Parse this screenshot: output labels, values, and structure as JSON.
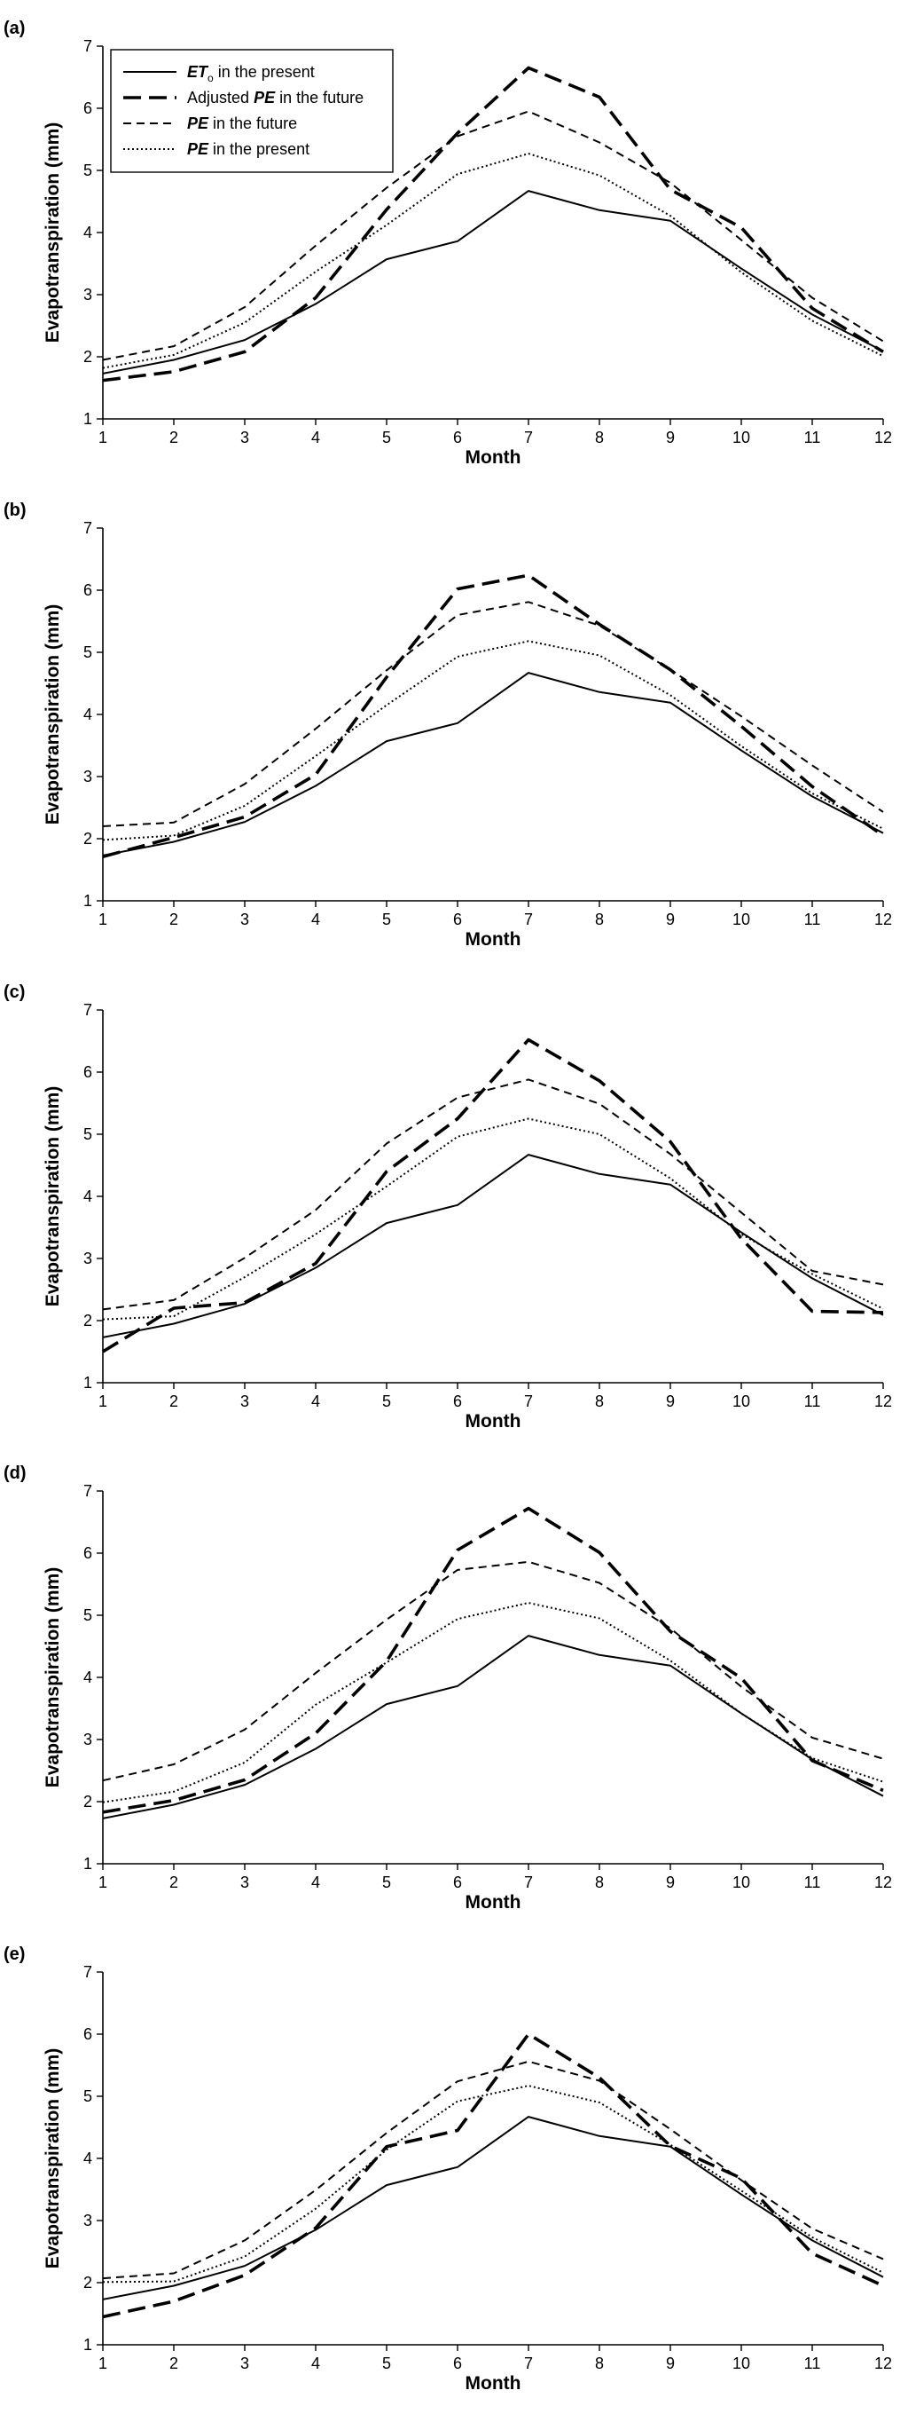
{
  "legend": {
    "entries": [
      {
        "key": "eto_present",
        "em": "ET",
        "sub": "o",
        "rest": " in the present"
      },
      {
        "key": "adjusted_pe_future",
        "pre": "Adjusted ",
        "em": "PE",
        "rest": " in the future"
      },
      {
        "key": "pe_future",
        "em": "PE",
        "rest": " in the future"
      },
      {
        "key": "pe_present",
        "em": "PE",
        "rest": " in the present"
      }
    ]
  },
  "chart_data": [
    {
      "type": "line",
      "panel_label": "(a)",
      "xlabel": "Month",
      "ylabel": "Evapotranspiration (mm)",
      "xlim": [
        1,
        12
      ],
      "ylim": [
        1,
        7
      ],
      "xticks": [
        1,
        2,
        3,
        4,
        5,
        6,
        7,
        8,
        9,
        10,
        11,
        12
      ],
      "yticks": [
        1,
        2,
        3,
        4,
        5,
        6,
        7
      ],
      "legend_position": "top-left",
      "x": [
        1,
        2,
        3,
        4,
        5,
        6,
        7,
        8,
        9,
        10,
        11,
        12
      ],
      "series": [
        {
          "key": "eto_present",
          "name": "ETo in the present",
          "values": [
            1.73,
            1.95,
            2.27,
            2.85,
            3.57,
            3.86,
            4.67,
            4.36,
            4.19,
            3.42,
            2.68,
            2.09
          ]
        },
        {
          "key": "adjusted_pe_future",
          "name": "Adjusted PE in the future",
          "values": [
            1.62,
            1.76,
            2.08,
            2.95,
            4.37,
            5.6,
            6.65,
            6.18,
            4.69,
            4.08,
            2.78,
            2.08
          ]
        },
        {
          "key": "pe_future",
          "name": "PE in the future",
          "values": [
            1.95,
            2.17,
            2.8,
            3.79,
            4.72,
            5.55,
            5.95,
            5.45,
            4.8,
            3.88,
            2.95,
            2.25
          ]
        },
        {
          "key": "pe_present",
          "name": "PE in the present",
          "values": [
            1.82,
            2.03,
            2.55,
            3.37,
            4.12,
            4.94,
            5.27,
            4.92,
            4.27,
            3.36,
            2.58,
            2.01
          ]
        }
      ]
    },
    {
      "type": "line",
      "panel_label": "(b)",
      "xlabel": "Month",
      "ylabel": "Evapotranspiration (mm)",
      "xlim": [
        1,
        12
      ],
      "ylim": [
        1,
        7
      ],
      "xticks": [
        1,
        2,
        3,
        4,
        5,
        6,
        7,
        8,
        9,
        10,
        11,
        12
      ],
      "yticks": [
        1,
        2,
        3,
        4,
        5,
        6,
        7
      ],
      "x": [
        1,
        2,
        3,
        4,
        5,
        6,
        7,
        8,
        9,
        10,
        11,
        12
      ],
      "series": [
        {
          "key": "eto_present",
          "name": "ETo in the present",
          "values": [
            1.73,
            1.95,
            2.27,
            2.85,
            3.57,
            3.86,
            4.67,
            4.36,
            4.19,
            3.42,
            2.68,
            2.09
          ]
        },
        {
          "key": "adjusted_pe_future",
          "name": "Adjusted PE in the future",
          "values": [
            1.71,
            2.02,
            2.35,
            3.03,
            4.6,
            6.02,
            6.24,
            5.45,
            4.72,
            3.81,
            2.84,
            2.05
          ]
        },
        {
          "key": "pe_future",
          "name": "PE in the future",
          "values": [
            2.2,
            2.26,
            2.88,
            3.77,
            4.71,
            5.6,
            5.81,
            5.43,
            4.72,
            3.97,
            3.18,
            2.43
          ]
        },
        {
          "key": "pe_present",
          "name": "PE in the present",
          "values": [
            1.98,
            2.05,
            2.53,
            3.33,
            4.15,
            4.93,
            5.18,
            4.95,
            4.31,
            3.49,
            2.73,
            2.16
          ]
        }
      ]
    },
    {
      "type": "line",
      "panel_label": "(c)",
      "xlabel": "Month",
      "ylabel": "Evapotranspiration (mm)",
      "xlim": [
        1,
        12
      ],
      "ylim": [
        1,
        7
      ],
      "xticks": [
        1,
        2,
        3,
        4,
        5,
        6,
        7,
        8,
        9,
        10,
        11,
        12
      ],
      "yticks": [
        1,
        2,
        3,
        4,
        5,
        6,
        7
      ],
      "x": [
        1,
        2,
        3,
        4,
        5,
        6,
        7,
        8,
        9,
        10,
        11,
        12
      ],
      "series": [
        {
          "key": "eto_present",
          "name": "ETo in the present",
          "values": [
            1.73,
            1.95,
            2.27,
            2.85,
            3.57,
            3.86,
            4.67,
            4.36,
            4.19,
            3.42,
            2.68,
            2.09
          ]
        },
        {
          "key": "adjusted_pe_future",
          "name": "Adjusted PE in the future",
          "values": [
            1.5,
            2.2,
            2.29,
            2.92,
            4.4,
            5.25,
            6.52,
            5.86,
            4.88,
            3.32,
            2.15,
            2.13
          ]
        },
        {
          "key": "pe_future",
          "name": "PE in the future",
          "values": [
            2.18,
            2.33,
            3.01,
            3.78,
            4.85,
            5.59,
            5.88,
            5.49,
            4.68,
            3.74,
            2.8,
            2.58
          ]
        },
        {
          "key": "pe_present",
          "name": "PE in the present",
          "values": [
            2.02,
            2.07,
            2.7,
            3.39,
            4.16,
            4.96,
            5.25,
            5.0,
            4.29,
            3.39,
            2.75,
            2.19
          ]
        }
      ]
    },
    {
      "type": "line",
      "panel_label": "(d)",
      "xlabel": "Month",
      "ylabel": "Evapotranspiration (mm)",
      "xlim": [
        1,
        12
      ],
      "ylim": [
        1,
        7
      ],
      "xticks": [
        1,
        2,
        3,
        4,
        5,
        6,
        7,
        8,
        9,
        10,
        11,
        12
      ],
      "yticks": [
        1,
        2,
        3,
        4,
        5,
        6,
        7
      ],
      "x": [
        1,
        2,
        3,
        4,
        5,
        6,
        7,
        8,
        9,
        10,
        11,
        12
      ],
      "series": [
        {
          "key": "eto_present",
          "name": "ETo in the present",
          "values": [
            1.73,
            1.95,
            2.27,
            2.85,
            3.57,
            3.86,
            4.67,
            4.36,
            4.19,
            3.42,
            2.68,
            2.09
          ]
        },
        {
          "key": "adjusted_pe_future",
          "name": "Adjusted PE in the future",
          "values": [
            1.83,
            2.02,
            2.35,
            3.1,
            4.26,
            6.05,
            6.72,
            6.01,
            4.74,
            3.99,
            2.66,
            2.18
          ]
        },
        {
          "key": "pe_future",
          "name": "PE in the future",
          "values": [
            2.34,
            2.6,
            3.16,
            4.07,
            4.93,
            5.73,
            5.86,
            5.52,
            4.79,
            3.85,
            3.03,
            2.69
          ]
        },
        {
          "key": "pe_present",
          "name": "PE in the present",
          "values": [
            1.99,
            2.16,
            2.63,
            3.56,
            4.24,
            4.94,
            5.2,
            4.95,
            4.27,
            3.42,
            2.7,
            2.32
          ]
        }
      ]
    },
    {
      "type": "line",
      "panel_label": "(e)",
      "xlabel": "Month",
      "ylabel": "Evapotranspiration (mm)",
      "xlim": [
        1,
        12
      ],
      "ylim": [
        1,
        7
      ],
      "xticks": [
        1,
        2,
        3,
        4,
        5,
        6,
        7,
        8,
        9,
        10,
        11,
        12
      ],
      "yticks": [
        1,
        2,
        3,
        4,
        5,
        6,
        7
      ],
      "x": [
        1,
        2,
        3,
        4,
        5,
        6,
        7,
        8,
        9,
        10,
        11,
        12
      ],
      "series": [
        {
          "key": "eto_present",
          "name": "ETo in the present",
          "values": [
            1.73,
            1.95,
            2.27,
            2.85,
            3.57,
            3.86,
            4.67,
            4.36,
            4.19,
            3.42,
            2.68,
            2.09
          ]
        },
        {
          "key": "adjusted_pe_future",
          "name": "Adjusted PE in the future",
          "values": [
            1.45,
            1.7,
            2.12,
            2.88,
            4.19,
            4.45,
            6.0,
            5.3,
            4.2,
            3.68,
            2.47,
            1.95
          ]
        },
        {
          "key": "pe_future",
          "name": "PE in the future",
          "values": [
            2.07,
            2.15,
            2.68,
            3.49,
            4.41,
            5.24,
            5.56,
            5.25,
            4.47,
            3.65,
            2.87,
            2.38
          ]
        },
        {
          "key": "pe_present",
          "name": "PE in the present",
          "values": [
            2.01,
            2.02,
            2.42,
            3.19,
            4.14,
            4.92,
            5.17,
            4.9,
            4.22,
            3.48,
            2.73,
            2.16
          ]
        }
      ]
    }
  ]
}
